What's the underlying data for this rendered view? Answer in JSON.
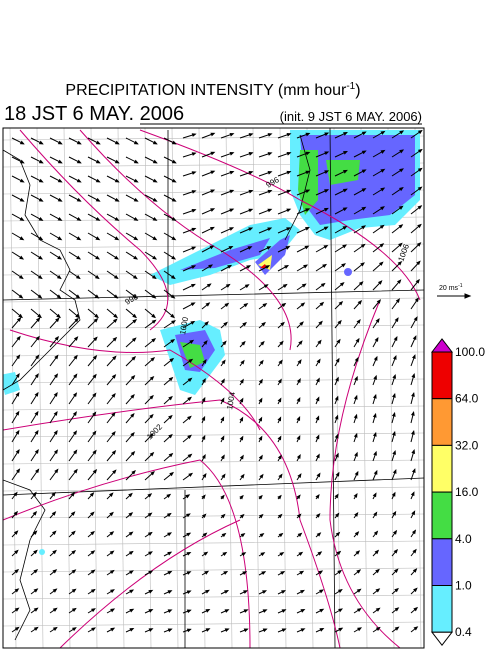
{
  "header": {
    "title": "PRECIPITATION INTENSITY (mm hour",
    "title_sup": "-1",
    "title_end": ")",
    "valid_time": "18 JST 6 MAY. 2006",
    "init_time": "(init. 9 JST 6 MAY. 2006)"
  },
  "legend": {
    "vector_label": "20 ms",
    "vector_sup": "-1",
    "colorbar": {
      "labels": [
        "100.0",
        "64.0",
        "32.0",
        "16.0",
        "4.0",
        "1.0",
        "0.4"
      ],
      "colors": [
        "#cc00cc",
        "#ee0000",
        "#ff9933",
        "#ffff66",
        "#44dd44",
        "#6666ff",
        "#66eeff",
        "#ffffff"
      ]
    }
  },
  "map": {
    "isobar_labels": [
      "996",
      "998",
      "1000",
      "1002",
      "1004",
      "1006"
    ]
  }
}
